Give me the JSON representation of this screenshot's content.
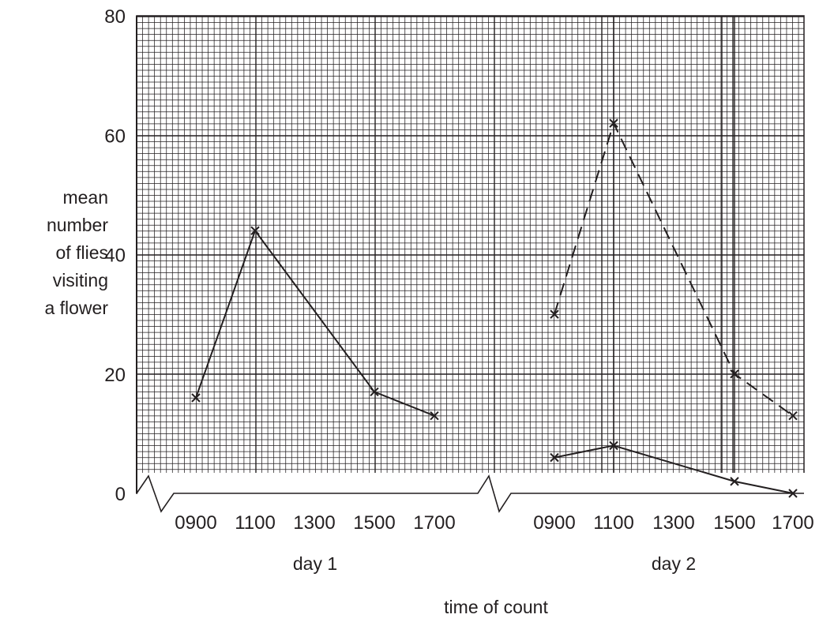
{
  "chart_data": {
    "type": "line",
    "ylabel_lines": [
      "mean",
      "number",
      "of flies",
      "visiting",
      "a flower"
    ],
    "xlabel": "time of count",
    "ylim": [
      0,
      80
    ],
    "y_ticks": [
      0,
      20,
      40,
      60,
      80
    ],
    "grid": true,
    "groups": [
      {
        "name": "day 1",
        "categories": [
          "0900",
          "1100",
          "1300",
          "1500",
          "1700"
        ],
        "series": [
          {
            "line_style": "solid",
            "x": [
              "0900",
              "1100",
              "1500",
              "1700"
            ],
            "values": [
              16,
              44,
              17,
              13
            ]
          }
        ]
      },
      {
        "name": "day 2",
        "categories": [
          "0900",
          "1100",
          "1300",
          "1500",
          "1700"
        ],
        "series": [
          {
            "line_style": "dashed",
            "x": [
              "0900",
              "1100",
              "1500",
              "1700"
            ],
            "values": [
              30,
              62,
              20,
              13
            ]
          },
          {
            "line_style": "solid",
            "x": [
              "0900",
              "1100",
              "1500",
              "1700"
            ],
            "values": [
              6,
              8,
              2,
              0
            ]
          }
        ]
      }
    ],
    "colors": {
      "ink": "#231f20",
      "grid": "#231f20"
    }
  }
}
